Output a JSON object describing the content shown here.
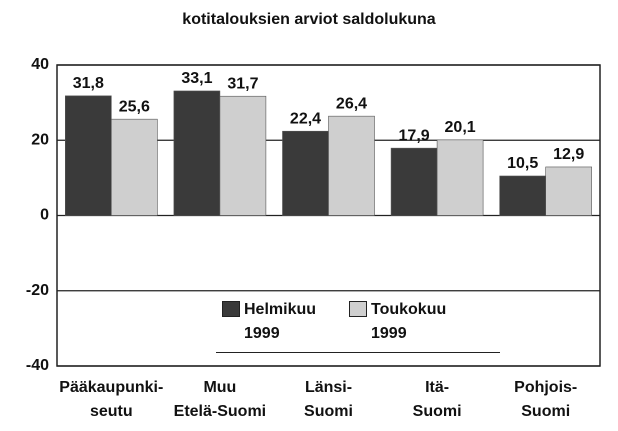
{
  "chart_data": {
    "type": "bar",
    "title": "kotitalouksien arviot saldolukuna",
    "categories": [
      [
        "Pääkaupunki-",
        "seutu"
      ],
      [
        "Muu",
        "Etelä-Suomi"
      ],
      [
        "Länsi-",
        "Suomi"
      ],
      [
        "Itä-",
        "Suomi"
      ],
      [
        "Pohjois-",
        "Suomi"
      ]
    ],
    "series": [
      {
        "name": "Helmikuu 1999",
        "color": "#3a3a3a",
        "values": [
          31.8,
          33.1,
          22.4,
          17.9,
          10.5
        ],
        "value_labels": [
          "31,8",
          "33,1",
          "22,4",
          "17,9",
          "10,5"
        ]
      },
      {
        "name": "Toukokuu 1999",
        "color": "#cfcfcf",
        "values": [
          25.6,
          31.7,
          26.4,
          20.1,
          12.9
        ],
        "value_labels": [
          "25,6",
          "31,7",
          "26,4",
          "20,1",
          "12,9"
        ]
      }
    ],
    "ylim": [
      -40,
      40
    ],
    "yticks": [
      40,
      20,
      0,
      -20,
      -40
    ],
    "grid": true,
    "legend": "bottom"
  }
}
